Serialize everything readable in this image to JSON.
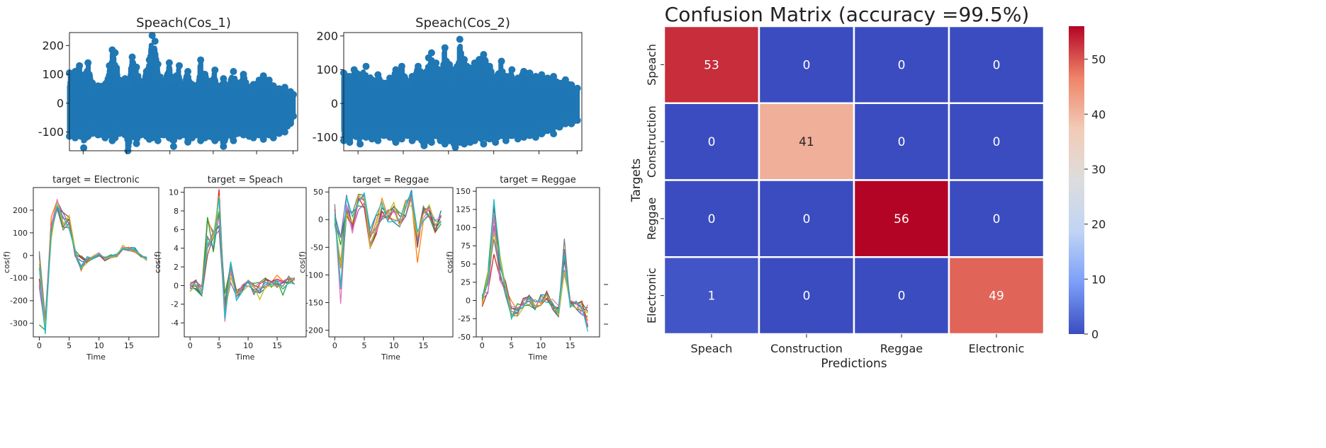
{
  "colors": {
    "scatter": "#1f77b4",
    "tab10": [
      "#1f77b4",
      "#ff7f0e",
      "#2ca02c",
      "#d62728",
      "#9467bd",
      "#8c564b",
      "#e377c2",
      "#7f7f7f",
      "#bcbd22",
      "#17becf"
    ],
    "cmap": [
      "#3b4cc0",
      "#7b9ff9",
      "#c0d4f5",
      "#dddddd",
      "#f2cbb7",
      "#ee8468",
      "#b40426"
    ]
  },
  "chart_data": [
    {
      "type": "scatter",
      "title": "Speach(Cos_1)",
      "xlim": [
        0,
        320
      ],
      "ylim": [
        -165,
        245
      ],
      "yticks": [
        -100,
        0,
        100,
        200
      ],
      "envelope": [
        [
          0,
          105,
          -115
        ],
        [
          8,
          110,
          -120
        ],
        [
          14,
          130,
          -110
        ],
        [
          20,
          95,
          -155
        ],
        [
          26,
          140,
          -115
        ],
        [
          32,
          70,
          -105
        ],
        [
          40,
          60,
          -110
        ],
        [
          50,
          65,
          -120
        ],
        [
          56,
          130,
          -110
        ],
        [
          60,
          185,
          -130
        ],
        [
          64,
          175,
          -120
        ],
        [
          70,
          80,
          -105
        ],
        [
          78,
          85,
          -110
        ],
        [
          82,
          60,
          -165
        ],
        [
          88,
          160,
          -115
        ],
        [
          94,
          125,
          -140
        ],
        [
          100,
          75,
          -110
        ],
        [
          108,
          110,
          -115
        ],
        [
          112,
          150,
          -125
        ],
        [
          116,
          235,
          -120
        ],
        [
          120,
          215,
          -115
        ],
        [
          124,
          135,
          -130
        ],
        [
          132,
          70,
          -110
        ],
        [
          140,
          140,
          -120
        ],
        [
          146,
          80,
          -150
        ],
        [
          154,
          130,
          -115
        ],
        [
          158,
          60,
          -110
        ],
        [
          166,
          110,
          -135
        ],
        [
          172,
          65,
          -120
        ],
        [
          178,
          60,
          -110
        ],
        [
          184,
          150,
          -130
        ],
        [
          190,
          100,
          -120
        ],
        [
          196,
          75,
          -115
        ],
        [
          204,
          115,
          -130
        ],
        [
          208,
          60,
          -120
        ],
        [
          216,
          85,
          -150
        ],
        [
          222,
          60,
          -110
        ],
        [
          230,
          110,
          -130
        ],
        [
          236,
          70,
          -105
        ],
        [
          244,
          100,
          -110
        ],
        [
          252,
          55,
          -115
        ],
        [
          258,
          65,
          -120
        ],
        [
          266,
          80,
          -110
        ],
        [
          272,
          95,
          -125
        ],
        [
          280,
          80,
          -110
        ],
        [
          286,
          60,
          -120
        ],
        [
          294,
          50,
          -105
        ],
        [
          302,
          55,
          -100
        ],
        [
          310,
          40,
          -70
        ],
        [
          314,
          30,
          -45
        ]
      ]
    },
    {
      "type": "scatter",
      "title": "Speach(Cos_2)",
      "xlim": [
        0,
        320
      ],
      "ylim": [
        -140,
        210
      ],
      "yticks": [
        -100,
        0,
        100,
        200
      ],
      "envelope": [
        [
          0,
          90,
          -110
        ],
        [
          8,
          80,
          -115
        ],
        [
          14,
          100,
          -95
        ],
        [
          22,
          85,
          -120
        ],
        [
          30,
          110,
          -100
        ],
        [
          38,
          70,
          -105
        ],
        [
          46,
          85,
          -110
        ],
        [
          54,
          60,
          -95
        ],
        [
          62,
          75,
          -100
        ],
        [
          70,
          100,
          -115
        ],
        [
          78,
          110,
          -105
        ],
        [
          86,
          65,
          -95
        ],
        [
          92,
          80,
          -110
        ],
        [
          100,
          110,
          -100
        ],
        [
          108,
          85,
          -125
        ],
        [
          114,
          135,
          -110
        ],
        [
          118,
          150,
          -115
        ],
        [
          124,
          120,
          -95
        ],
        [
          130,
          95,
          -110
        ],
        [
          136,
          165,
          -120
        ],
        [
          142,
          115,
          -110
        ],
        [
          150,
          95,
          -130
        ],
        [
          156,
          190,
          -115
        ],
        [
          162,
          130,
          -120
        ],
        [
          170,
          105,
          -115
        ],
        [
          176,
          120,
          -110
        ],
        [
          182,
          130,
          -100
        ],
        [
          188,
          145,
          -120
        ],
        [
          196,
          110,
          -105
        ],
        [
          204,
          75,
          -115
        ],
        [
          212,
          125,
          -95
        ],
        [
          218,
          80,
          -110
        ],
        [
          226,
          100,
          -95
        ],
        [
          234,
          75,
          -105
        ],
        [
          242,
          95,
          -100
        ],
        [
          250,
          90,
          -95
        ],
        [
          258,
          80,
          -100
        ],
        [
          266,
          85,
          -90
        ],
        [
          274,
          75,
          -80
        ],
        [
          282,
          80,
          -90
        ],
        [
          290,
          60,
          -70
        ],
        [
          298,
          70,
          -60
        ],
        [
          306,
          55,
          -60
        ],
        [
          314,
          45,
          -50
        ]
      ]
    },
    {
      "type": "line",
      "title": "target = Electronic",
      "xlabel": "Time",
      "ylabel": "cos(f)",
      "xlim": [
        -1,
        20
      ],
      "ylim": [
        -360,
        300
      ],
      "xticks": [
        0,
        5,
        10,
        15
      ],
      "yticks": [
        -300,
        -200,
        -100,
        0,
        100,
        200
      ],
      "base": [
        -150,
        -300,
        120,
        230,
        160,
        150,
        10,
        -40,
        -20,
        -10,
        5,
        -15,
        -5,
        0,
        35,
        30,
        25,
        0,
        -15
      ],
      "spread": [
        170,
        60,
        50,
        30,
        50,
        40,
        20,
        40,
        15,
        8,
        8,
        10,
        8,
        8,
        10,
        10,
        10,
        8,
        8
      ]
    },
    {
      "type": "line",
      "title": "target = Speach",
      "xlabel": "Time",
      "ylabel": "cos(f)",
      "xlim": [
        -1,
        20
      ],
      "ylim": [
        -5.5,
        10.5
      ],
      "xticks": [
        0,
        5,
        10,
        15
      ],
      "yticks": [
        -4,
        -2,
        0,
        2,
        4,
        6,
        8,
        10
      ],
      "base": [
        0,
        0,
        -0.5,
        5,
        4.8,
        8,
        -2.5,
        1.5,
        -1,
        -0.3,
        0.2,
        -0.3,
        -0.5,
        0.2,
        0,
        0.5,
        -0.3,
        0.5,
        0.5
      ],
      "spread": [
        0.7,
        0.6,
        0.8,
        2.5,
        1.3,
        2.5,
        2,
        2,
        0.8,
        0.4,
        0.4,
        0.7,
        1,
        0.7,
        0.5,
        0.7,
        0.8,
        0.6,
        0.4
      ]
    },
    {
      "type": "line",
      "title": "target = Reggae",
      "xlabel": "Time",
      "ylabel": "cos(f)",
      "xlim": [
        -1,
        20
      ],
      "ylim": [
        -212,
        58
      ],
      "xticks": [
        0,
        5,
        10,
        15
      ],
      "yticks": [
        -200,
        -150,
        -100,
        -50,
        0,
        50
      ],
      "base": [
        10,
        -100,
        20,
        -10,
        30,
        35,
        -40,
        -10,
        20,
        10,
        15,
        0,
        20,
        40,
        -50,
        10,
        15,
        -15,
        10
      ],
      "spread": [
        20,
        80,
        25,
        25,
        20,
        15,
        25,
        20,
        20,
        15,
        20,
        15,
        15,
        15,
        30,
        15,
        15,
        20,
        20
      ]
    },
    {
      "type": "line",
      "title": "target = Reggae",
      "ylabel": "cos(f)",
      "xlabel": "Time",
      "xlim": [
        -1,
        20
      ],
      "ylim": [
        -50,
        155
      ],
      "xticks": [
        0,
        5,
        10,
        15
      ],
      "yticks": [
        -50,
        -25,
        0,
        25,
        50,
        75,
        100,
        125,
        150
      ],
      "base": [
        0,
        25,
        100,
        45,
        20,
        -10,
        -15,
        -5,
        0,
        -5,
        0,
        5,
        -5,
        -15,
        60,
        -5,
        -5,
        -10,
        -25
      ],
      "spread": [
        10,
        15,
        40,
        20,
        15,
        15,
        12,
        10,
        8,
        8,
        10,
        8,
        8,
        8,
        25,
        8,
        8,
        10,
        20
      ]
    },
    {
      "type": "heatmap",
      "title": "Confusion Matrix (accuracy =99.5%)",
      "xlabel": "Predictions",
      "ylabel": "Targets",
      "x_categories": [
        "Speach",
        "Construction",
        "Reggae",
        "Electronic"
      ],
      "y_categories": [
        "Speach",
        "Construction",
        "Reggae",
        "Electronic"
      ],
      "values": [
        [
          53,
          0,
          0,
          0
        ],
        [
          0,
          41,
          0,
          0
        ],
        [
          0,
          0,
          56,
          0
        ],
        [
          1,
          0,
          0,
          49
        ]
      ],
      "colorbar": {
        "vmin": 0,
        "vmax": 56,
        "ticks": [
          0,
          10,
          20,
          30,
          40,
          50
        ]
      }
    }
  ]
}
